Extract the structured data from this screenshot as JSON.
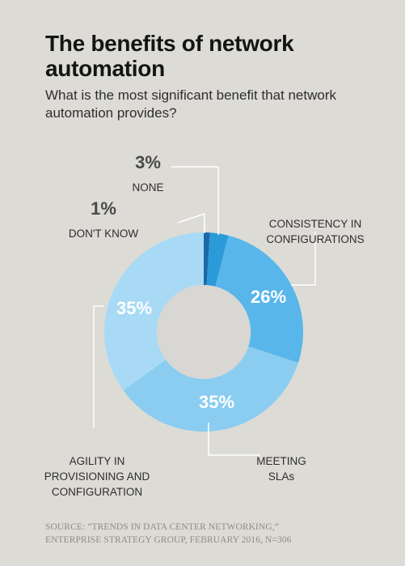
{
  "header": {
    "title": "The benefits of network automation",
    "subtitle": "What is the most significant benefit that network automation provides?"
  },
  "chart_data": {
    "type": "pie",
    "donut": true,
    "title": "The benefits of network automation",
    "subtitle": "What is the most significant benefit that network automation provides?",
    "series": [
      {
        "label_lines": [
          "DON'T KNOW"
        ],
        "value": 1,
        "value_label": "1%",
        "color": "#1a6aa5"
      },
      {
        "label_lines": [
          "NONE"
        ],
        "value": 3,
        "value_label": "3%",
        "color": "#2b9ad8"
      },
      {
        "label_lines": [
          "CONSISTENCY IN",
          "CONFIGURATIONS"
        ],
        "value": 26,
        "value_label": "26%",
        "color": "#58b6ea"
      },
      {
        "label_lines": [
          "MEETING",
          "SLAs"
        ],
        "value": 35,
        "value_label": "35%",
        "color": "#8acdf1"
      },
      {
        "label_lines": [
          "AGILITY IN",
          "PROVISIONING AND",
          "CONFIGURATION"
        ],
        "value": 35,
        "value_label": "35%",
        "color": "#a8daf5"
      }
    ],
    "center_color": "#d9d7d3",
    "label_color": "#2e2e2e",
    "percent_label_color": "#ffffff",
    "outside_percent_color": "#4a4a4a",
    "legend": "none"
  },
  "footer": {
    "source_line1": "SOURCE: “TRENDS IN DATA CENTER NETWORKING,”",
    "source_line2": "ENTERPRISE STRATEGY GROUP, FEBRUARY 2016, N=306"
  }
}
